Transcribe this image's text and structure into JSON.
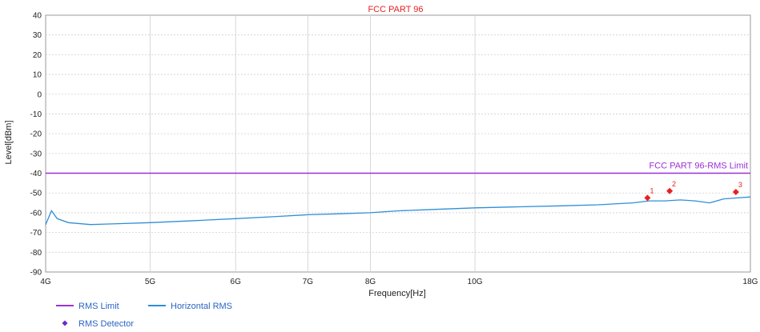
{
  "chart_data": {
    "type": "line",
    "title": "FCC PART 96",
    "xlabel": "Frequency[Hz]",
    "ylabel": "Level[dBm]",
    "x_scale": "log",
    "xlim": [
      4000000000,
      18000000000
    ],
    "ylim": [
      -90,
      40
    ],
    "grid": true,
    "x_ticks": [
      {
        "value": 4000000000,
        "label": "4G"
      },
      {
        "value": 5000000000,
        "label": "5G"
      },
      {
        "value": 6000000000,
        "label": "6G"
      },
      {
        "value": 7000000000,
        "label": "7G"
      },
      {
        "value": 8000000000,
        "label": "8G"
      },
      {
        "value": 10000000000,
        "label": "10G"
      },
      {
        "value": 18000000000,
        "label": "18G"
      }
    ],
    "y_ticks": [
      40,
      30,
      20,
      10,
      0,
      -10,
      -20,
      -30,
      -40,
      -50,
      -60,
      -70,
      -80,
      -90
    ],
    "series": [
      {
        "name": "RMS Limit",
        "color": "#9b30d9",
        "x": [
          4000000000,
          18000000000
        ],
        "y": [
          -40,
          -40
        ]
      },
      {
        "name": "Horizontal RMS",
        "color": "#2e8fd8",
        "x": [
          4000000000,
          4050000000,
          4100000000,
          4200000000,
          4400000000,
          4700000000,
          5000000000,
          5500000000,
          6000000000,
          6500000000,
          7000000000,
          7500000000,
          8000000000,
          8500000000,
          9000000000,
          10000000000,
          11000000000,
          12000000000,
          13000000000,
          14000000000,
          14500000000,
          15000000000,
          15500000000,
          16000000000,
          16500000000,
          17000000000,
          17500000000,
          18000000000
        ],
        "y": [
          -66,
          -59,
          -63,
          -65,
          -66,
          -65.5,
          -65,
          -64,
          -63,
          -62,
          -61,
          -60.5,
          -60,
          -59,
          -58.5,
          -57.5,
          -57,
          -56.5,
          -56,
          -55,
          -54,
          -54,
          -53.5,
          -54,
          -55,
          -53,
          -52.5,
          -52
        ]
      }
    ],
    "annotations": [
      {
        "label": "FCC PART 96-RMS Limit",
        "x": 18000000000,
        "y": -40,
        "color": "#9b30d9"
      }
    ],
    "markers": {
      "name": "RMS Detector",
      "color": "#e52222",
      "points": [
        {
          "label": "1",
          "x": 14450000000,
          "y": -52.5
        },
        {
          "label": "2",
          "x": 15150000000,
          "y": -49
        },
        {
          "label": "3",
          "x": 17450000000,
          "y": -49.5
        }
      ]
    },
    "legend": [
      {
        "name": "RMS Limit",
        "color": "#9b30d9",
        "symbol": "line"
      },
      {
        "name": "Horizontal RMS",
        "color": "#2e8fd8",
        "symbol": "line"
      },
      {
        "name": "RMS Detector",
        "color": "#6a2bc7",
        "symbol": "diamond"
      }
    ],
    "legend_position": "bottom-left"
  }
}
